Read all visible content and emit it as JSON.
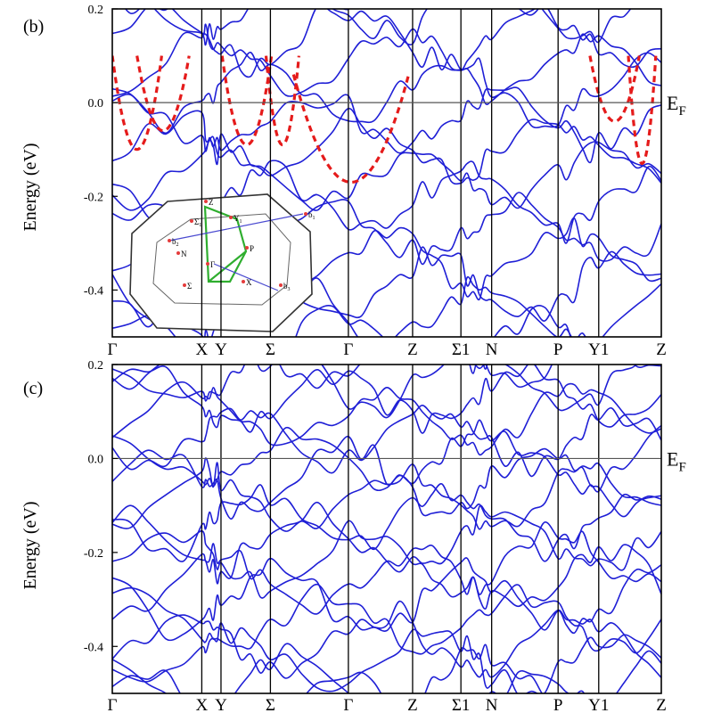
{
  "chart_data": [
    {
      "type": "line",
      "panel_label": "(b)",
      "ylabel": "Energy (eV)",
      "ylim": [
        -0.5,
        0.2
      ],
      "y_ticks": [
        "0.2",
        "0.0",
        "-0.2",
        "-0.4"
      ],
      "y_tick_values": [
        0.2,
        0.0,
        -0.2,
        -0.4
      ],
      "k_path": [
        "Γ",
        "X",
        "Y",
        "Σ",
        "Γ",
        "Z",
        "Σ1",
        "N",
        "P",
        "Y1",
        "Z"
      ],
      "k_positions": [
        0,
        0.163,
        0.198,
        0.288,
        0.43,
        0.547,
        0.635,
        0.691,
        0.812,
        0.886,
        1.0
      ],
      "fermi_label": "E",
      "fermi_sub": "F",
      "reference_line": 0.0,
      "band_color": "#1f1fd6",
      "fit_color": "#e51b1b",
      "inset": {
        "labels": [
          "Z",
          "Y",
          "Σ",
          "N",
          "P",
          "Σ",
          "X",
          "Γ",
          "b",
          "b",
          "b"
        ],
        "label_subs": [
          "",
          "1",
          "1",
          "",
          "",
          "",
          "",
          "",
          "1",
          "2",
          "3"
        ]
      }
    },
    {
      "type": "line",
      "panel_label": "(c)",
      "ylabel": "Energy (eV)",
      "ylim": [
        -0.5,
        0.2
      ],
      "y_ticks": [
        "0.2",
        "0.0",
        "-0.2",
        "-0.4"
      ],
      "y_tick_values": [
        0.2,
        0.0,
        -0.2,
        -0.4
      ],
      "k_path": [
        "Γ",
        "X",
        "Y",
        "Σ",
        "Γ",
        "Z",
        "Σ1",
        "N",
        "P",
        "Y1",
        "Z"
      ],
      "k_positions": [
        0,
        0.163,
        0.198,
        0.288,
        0.43,
        0.547,
        0.635,
        0.691,
        0.812,
        0.886,
        1.0
      ],
      "fermi_label": "E",
      "fermi_sub": "F",
      "reference_line": 0.0,
      "band_color": "#1f1fd6"
    }
  ]
}
